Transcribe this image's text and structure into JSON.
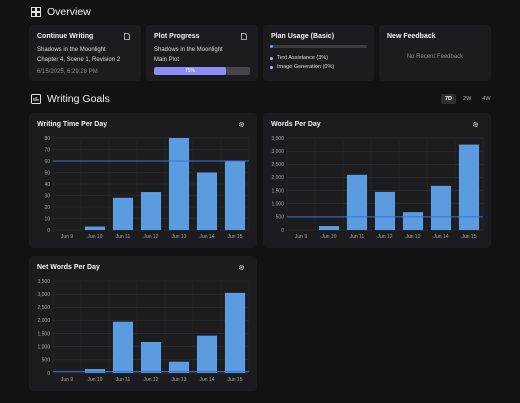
{
  "overview": {
    "title": "Overview",
    "icon": "dashboard-icon"
  },
  "continue_writing": {
    "title": "Continue Writing",
    "project": "Shadows in the Moonlight",
    "location": "Chapter 4, Scene 1, Revision 2",
    "timestamp": "6/15/2025, 6:29:28 PM"
  },
  "plot_progress": {
    "title": "Plot Progress",
    "project": "Shadows in the Moonlight",
    "plot": "Main Plot",
    "percent": 75,
    "percent_label": "75%"
  },
  "plan_usage": {
    "title": "Plan Usage (Basic)",
    "usage_fraction": 0.03,
    "items": [
      {
        "label": "Text Assistance (3%)"
      },
      {
        "label": "Image Generation (0%)"
      }
    ]
  },
  "new_feedback": {
    "title": "New Feedback",
    "empty_text": "No Recent Feedback"
  },
  "writing_goals": {
    "title": "Writing Goals",
    "ranges": [
      "7D",
      "2W",
      "4W"
    ],
    "active_range": "7D"
  },
  "colors": {
    "accent": "#6aa0ff",
    "bar": "#5b9be0",
    "goal_line": "#3f6fd1",
    "progress": "#8a8ef5"
  },
  "chart_data": [
    {
      "type": "bar",
      "title": "Writing Time Per Day",
      "categories": [
        "Jun 9",
        "Jun 10",
        "Jun 11",
        "Jun 12",
        "Jun 13",
        "Jun 14",
        "Jun 15"
      ],
      "values": [
        0,
        3,
        28,
        33,
        80,
        50,
        60
      ],
      "goal": 60,
      "ylim": [
        0,
        80
      ],
      "yticks": [
        0,
        10,
        20,
        30,
        40,
        50,
        60,
        70,
        80
      ],
      "grid": true
    },
    {
      "type": "bar",
      "title": "Words Per Day",
      "categories": [
        "Jun 9",
        "Jun 10",
        "Jun 11",
        "Jun 12",
        "Jun 13",
        "Jun 14",
        "Jun 15"
      ],
      "values": [
        0,
        150,
        2100,
        1450,
        680,
        1680,
        3250
      ],
      "goal": 500,
      "ylim": [
        0,
        3500
      ],
      "yticks": [
        0,
        500,
        1000,
        1500,
        2000,
        2500,
        3000,
        3500
      ],
      "ytick_labels": [
        "0",
        "500",
        "1,000",
        "1,500",
        "2,000",
        "2,500",
        "3,000",
        "3,500"
      ],
      "grid": true
    },
    {
      "type": "bar",
      "title": "Net Words Per Day",
      "categories": [
        "Jun 9",
        "Jun 10",
        "Jun 11",
        "Jun 12",
        "Jun 13",
        "Jun 14",
        "Jun 15"
      ],
      "values": [
        0,
        150,
        1950,
        1180,
        430,
        1420,
        3050
      ],
      "goal": 50,
      "ylim": [
        0,
        3500
      ],
      "yticks": [
        0,
        500,
        1000,
        1500,
        2000,
        2500,
        3000,
        3500
      ],
      "ytick_labels": [
        "0",
        "500",
        "1,000",
        "1,500",
        "2,000",
        "2,500",
        "3,000",
        "3,500"
      ],
      "grid": true
    }
  ]
}
